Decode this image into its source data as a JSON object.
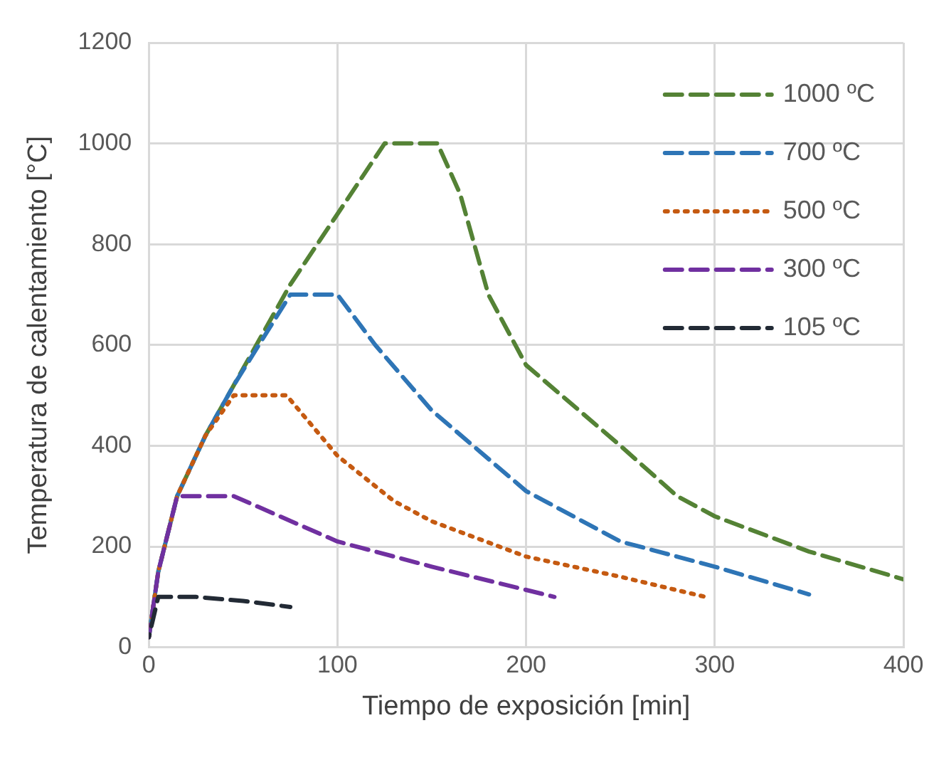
{
  "chart_data": {
    "type": "line",
    "xlabel": "Tiempo de exposición [min]",
    "ylabel": "Temperatura de calentamiento [°C]",
    "xlim": [
      0,
      400
    ],
    "xticks": [
      0,
      100,
      200,
      300,
      400
    ],
    "ylim": [
      0,
      1200
    ],
    "yticks": [
      0,
      200,
      400,
      600,
      800,
      1000,
      1200
    ],
    "grid": true,
    "legend": "top right",
    "marker": "none",
    "series": [
      {
        "name": "1000 ºC",
        "color": "#548235",
        "line_style": "dashed",
        "x": [
          0,
          5,
          15,
          30,
          45,
          60,
          75,
          100,
          125,
          153,
          165,
          180,
          200,
          250,
          280,
          300,
          350,
          400
        ],
        "values": [
          20,
          150,
          300,
          420,
          520,
          620,
          720,
          860,
          1000,
          1000,
          900,
          700,
          560,
          400,
          300,
          260,
          190,
          135
        ]
      },
      {
        "name": "700 ºC",
        "color": "#2e75b6",
        "line_style": "dashed",
        "x": [
          0,
          5,
          15,
          30,
          45,
          60,
          75,
          100,
          120,
          150,
          200,
          250,
          300,
          350
        ],
        "values": [
          20,
          150,
          300,
          420,
          520,
          610,
          700,
          700,
          600,
          470,
          310,
          210,
          160,
          105
        ]
      },
      {
        "name": "500 ºC",
        "color": "#c55a11",
        "line_style": "dotted",
        "x": [
          0,
          5,
          15,
          30,
          45,
          73,
          100,
          130,
          150,
          200,
          250,
          295
        ],
        "values": [
          20,
          150,
          300,
          420,
          500,
          500,
          380,
          290,
          250,
          180,
          140,
          100
        ]
      },
      {
        "name": "300 ºC",
        "color": "#7030a0",
        "line_style": "dashed",
        "x": [
          0,
          5,
          15,
          45,
          100,
          150,
          215
        ],
        "values": [
          20,
          150,
          300,
          300,
          210,
          160,
          100
        ]
      },
      {
        "name": "105 ºC",
        "color": "#222a35",
        "line_style": "dashed",
        "x": [
          0,
          5,
          25,
          50,
          75
        ],
        "values": [
          20,
          100,
          100,
          92,
          80
        ]
      }
    ]
  }
}
